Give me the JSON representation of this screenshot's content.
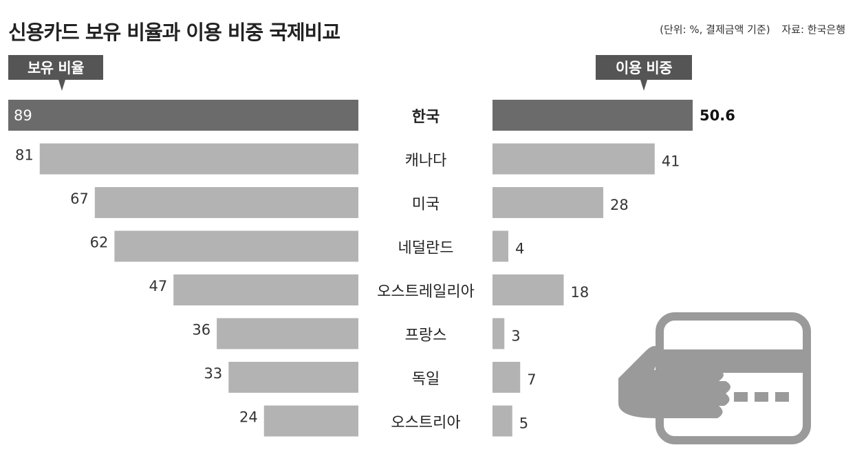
{
  "title": "신용카드 보유 비율과 이용 비중 국제비교",
  "note": {
    "unit": "(단위: %, 결제금액 기준)",
    "source": "자료: 한국은행"
  },
  "left_tag": "보유 비율",
  "right_tag": "이용 비중",
  "colors": {
    "highlight": "#6b6b6b",
    "bar": "#b3b3b3",
    "tag": "#555555",
    "icon": "#9a9a9a"
  },
  "icon": "hand-credit-card-icon",
  "chart_data": {
    "type": "bar",
    "categories": [
      "한국",
      "캐나다",
      "미국",
      "네덜란드",
      "오스트레일리아",
      "프랑스",
      "독일",
      "오스트리아"
    ],
    "series": [
      {
        "name": "보유 비율",
        "values": [
          89,
          81,
          67,
          62,
          47,
          36,
          33,
          24
        ]
      },
      {
        "name": "이용 비중",
        "values": [
          50.6,
          41,
          28,
          4,
          18,
          3,
          7,
          5
        ]
      }
    ],
    "value_labels_left": [
      "89",
      "81",
      "67",
      "62",
      "47",
      "36",
      "33",
      "24"
    ],
    "value_labels_right": [
      "50.6",
      "41",
      "28",
      "4",
      "18",
      "3",
      "7",
      "5"
    ],
    "highlight_category": "한국",
    "grid": false
  }
}
